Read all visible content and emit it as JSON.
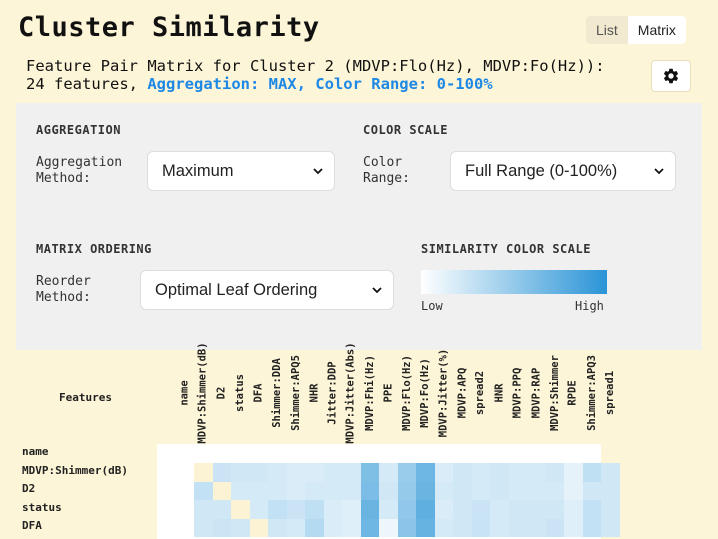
{
  "header": {
    "title": "Cluster Similarity",
    "view_toggle": [
      "List",
      "Matrix"
    ],
    "active_view": "Matrix",
    "subtitle_line1": "Feature Pair Matrix for Cluster 2 (MDVP:Flo(Hz), MDVP:Fo(Hz)):",
    "subtitle_line2_prefix": "24 features, ",
    "subtitle_line2_highlight": "Aggregation: MAX, Color Range: 0-100%"
  },
  "controls": {
    "aggregation": {
      "section": "AGGREGATION",
      "label_line1": "Aggregation",
      "label_line2": "Method:",
      "value": "Maximum"
    },
    "color_scale": {
      "section": "COLOR SCALE",
      "label_line1": "Color",
      "label_line2": "Range:",
      "value": "Full Range (0-100%)"
    },
    "ordering": {
      "section": "MATRIX ORDERING",
      "label_line1": "Reorder",
      "label_line2": "Method:",
      "value": "Optimal Leaf Ordering"
    },
    "similarity_scale": {
      "section": "SIMILARITY COLOR SCALE",
      "low": "Low",
      "high": "High",
      "low_color": "#ffffff",
      "high_color": "#2a94d6"
    }
  },
  "matrix": {
    "features_header": "Features",
    "columns": [
      "name",
      "MDVP:Shimmer(dB)",
      "D2",
      "status",
      "DFA",
      "Shimmer:DDA",
      "Shimmer:APQ5",
      "NHR",
      "Jitter:DDP",
      "MDVP:Jitter(Abs)",
      "MDVP:Fhi(Hz)",
      "PPE",
      "MDVP:Flo(Hz)",
      "MDVP:Fo(Hz)",
      "MDVP:Jitter(%)",
      "MDVP:APQ",
      "spread2",
      "HNR",
      "MDVP:PPQ",
      "MDVP:RAP",
      "MDVP:Shimmer",
      "RPDE",
      "Shimmer:APQ3",
      "spread1"
    ],
    "rows": [
      "name",
      "MDVP:Shimmer(dB)",
      "D2",
      "status",
      "DFA"
    ],
    "values": [
      [
        0,
        0,
        0,
        0,
        0,
        0,
        0,
        0,
        0,
        0,
        0,
        0,
        0,
        0,
        0,
        0,
        0,
        0,
        0,
        0,
        0,
        0,
        0,
        0
      ],
      [
        0,
        0.1,
        0.25,
        0.22,
        0.22,
        0.2,
        0.18,
        0.18,
        0.2,
        0.2,
        0.6,
        0.2,
        0.48,
        0.68,
        0.18,
        0.22,
        0.2,
        0.22,
        0.2,
        0.2,
        0.22,
        0.12,
        0.3,
        0.22
      ],
      [
        0,
        0.28,
        0.1,
        0.2,
        0.2,
        0.2,
        0.18,
        0.2,
        0.2,
        0.2,
        0.62,
        0.22,
        0.5,
        0.7,
        0.2,
        0.22,
        0.2,
        0.22,
        0.2,
        0.2,
        0.2,
        0.12,
        0.22,
        0.22
      ],
      [
        0,
        0.22,
        0.22,
        0.1,
        0.2,
        0.28,
        0.25,
        0.3,
        0.18,
        0.15,
        0.7,
        0.2,
        0.52,
        0.75,
        0.18,
        0.22,
        0.25,
        0.2,
        0.22,
        0.22,
        0.22,
        0.15,
        0.28,
        0.22
      ],
      [
        0,
        0.22,
        0.24,
        0.22,
        0.05,
        0.22,
        0.2,
        0.35,
        0.18,
        0.15,
        0.68,
        0.08,
        0.55,
        0.72,
        0.2,
        0.22,
        0.26,
        0.2,
        0.22,
        0.22,
        0.25,
        0.15,
        0.28,
        0.22
      ]
    ],
    "diagonal_color": "#fbf3d4"
  }
}
